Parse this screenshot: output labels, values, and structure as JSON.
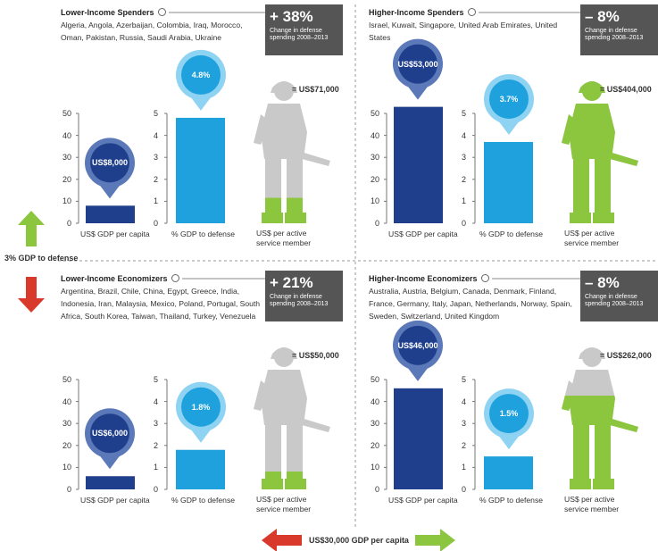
{
  "panels": [
    {
      "title": "Lower-Income Spenders",
      "countries": "Algeria, Angola, Azerbaijan, Colombia, Iraq, Morocco, Oman, Pakistan, Russia, Saudi Arabia, Ukraine",
      "change": "+ 38%",
      "change_caption": "Change in defense spending 2008–2013",
      "gdp": {
        "value": 8,
        "label": "US$8,000"
      },
      "defense": {
        "value": 4.8,
        "label": "4.8%"
      },
      "personnel": {
        "value": 71000,
        "label": "= US$71,000"
      }
    },
    {
      "title": "Higher-Income Spenders",
      "countries": "Israel, Kuwait, Singapore, United Arab Emirates, United States",
      "change": "– 8%",
      "change_caption": "Change in defense spending 2008–2013",
      "gdp": {
        "value": 53,
        "label": "US$53,000"
      },
      "defense": {
        "value": 3.7,
        "label": "3.7%"
      },
      "personnel": {
        "value": 404000,
        "label": "= US$404,000"
      }
    },
    {
      "title": "Lower-Income Economizers",
      "countries": "Argentina, Brazil, Chile, China, Egypt, Greece, India, Indonesia, Iran, Malaysia, Mexico, Poland, Portugal, South Africa, South Korea, Taiwan, Thailand, Turkey, Venezuela",
      "change": "+ 21%",
      "change_caption": "Change in defense spending 2008–2013",
      "gdp": {
        "value": 6,
        "label": "US$6,000"
      },
      "defense": {
        "value": 1.8,
        "label": "1.8%"
      },
      "personnel": {
        "value": 50000,
        "label": "= US$50,000"
      }
    },
    {
      "title": "Higher-Income Economizers",
      "countries": "Australia, Austria, Belgium, Canada, Denmark, Finland, France, Germany, Italy, Japan, Netherlands, Norway, Spain, Sweden, Switzerland, United Kingdom",
      "change": "– 8%",
      "change_caption": "Change in defense spending 2008–2013",
      "gdp": {
        "value": 46,
        "label": "US$46,000"
      },
      "defense": {
        "value": 1.5,
        "label": "1.5%"
      },
      "personnel": {
        "value": 262000,
        "label": "= US$262,000"
      }
    }
  ],
  "gdp_axis": {
    "ylim": [
      0,
      50
    ],
    "yticks": [
      0,
      10,
      20,
      30,
      40,
      50
    ],
    "color": "#1f3f8c"
  },
  "defense_axis": {
    "ylim": [
      0,
      5
    ],
    "yticks": [
      0,
      1,
      2,
      3,
      4,
      5
    ],
    "color": "#1ea1dc"
  },
  "personnel_colors": {
    "fill": "#8cc63f",
    "base": "#c9c9c9"
  },
  "axis_labels": {
    "gdp": "US$ GDP per capita",
    "defense": "% GDP to defense",
    "personnel": "US$ per active service member"
  },
  "thresholds": {
    "defense": "3% GDP to defense",
    "gdp": "US$30,000 GDP per capita"
  }
}
